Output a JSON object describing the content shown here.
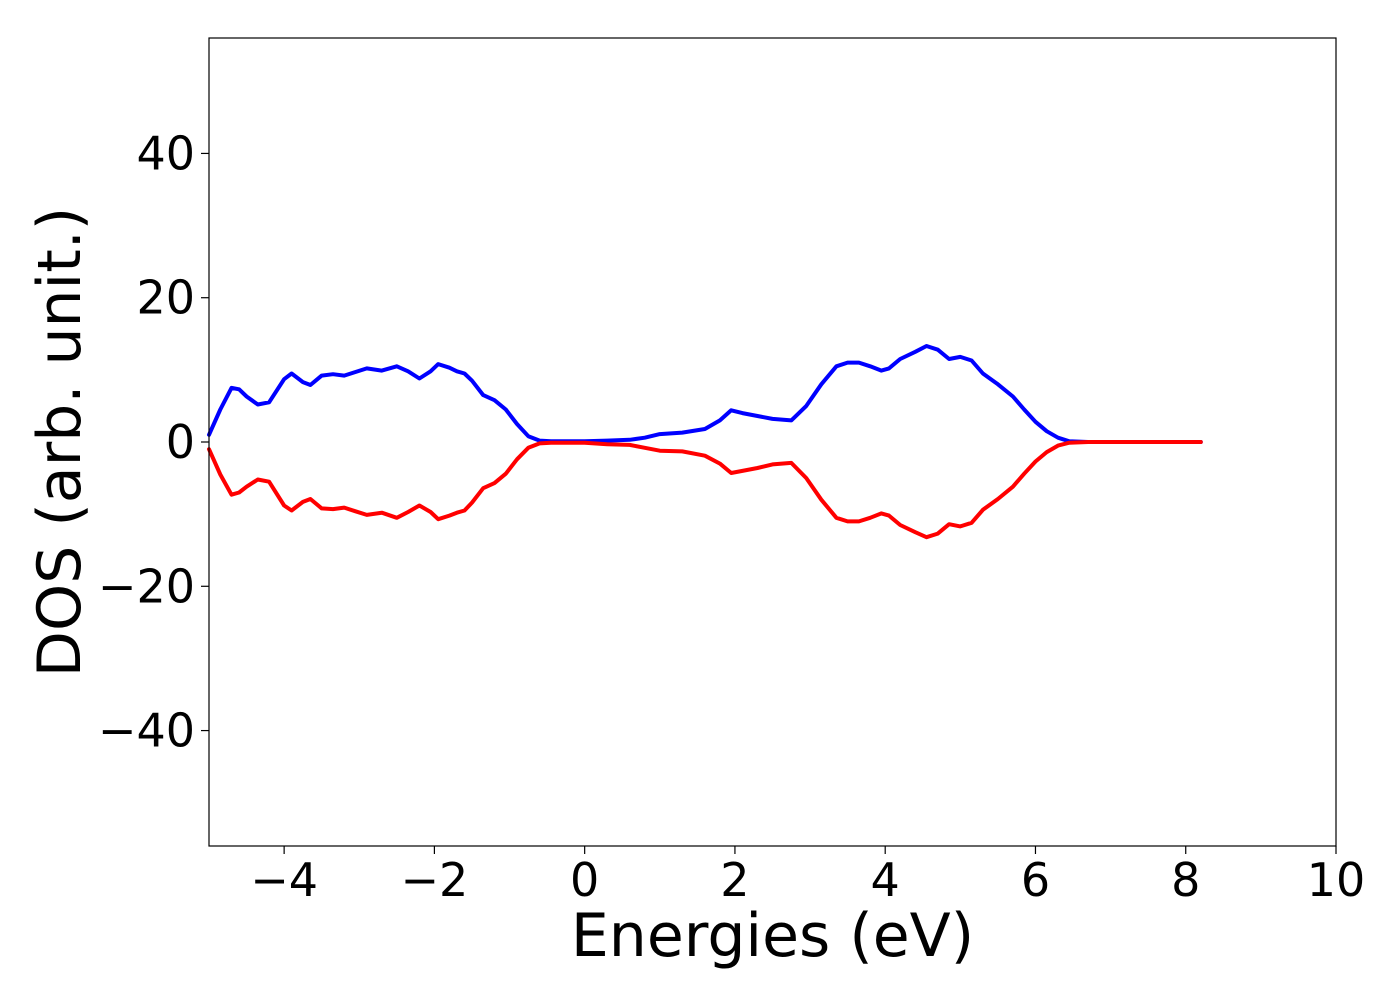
{
  "chart_data": {
    "type": "line",
    "title": "",
    "xlabel": "Energies (eV)",
    "ylabel": "DOS (arb. unit.)",
    "xlim": [
      -5,
      10
    ],
    "ylim": [
      -56,
      56
    ],
    "xticks": [
      -4,
      -2,
      0,
      2,
      4,
      6,
      8,
      10
    ],
    "yticks": [
      -40,
      -20,
      0,
      20,
      40
    ],
    "xtick_labels": [
      "−4",
      "−2",
      "0",
      "2",
      "4",
      "6",
      "8",
      "10"
    ],
    "ytick_labels": [
      "−40",
      "−20",
      "0",
      "20",
      "40"
    ],
    "grid": false,
    "legend": "none",
    "series": [
      {
        "color": "#0000ff",
        "x": [
          -5.0,
          -4.85,
          -4.7,
          -4.6,
          -4.5,
          -4.35,
          -4.2,
          -4.0,
          -3.9,
          -3.75,
          -3.65,
          -3.5,
          -3.35,
          -3.2,
          -3.05,
          -2.9,
          -2.7,
          -2.5,
          -2.35,
          -2.2,
          -2.05,
          -1.95,
          -1.8,
          -1.7,
          -1.6,
          -1.5,
          -1.35,
          -1.2,
          -1.05,
          -0.9,
          -0.75,
          -0.6,
          -0.45,
          -0.3,
          -0.15,
          0.0,
          0.3,
          0.6,
          0.8,
          1.0,
          1.3,
          1.6,
          1.8,
          1.95,
          2.1,
          2.3,
          2.5,
          2.75,
          2.95,
          3.15,
          3.35,
          3.5,
          3.65,
          3.8,
          3.95,
          4.05,
          4.2,
          4.4,
          4.55,
          4.7,
          4.85,
          5.0,
          5.15,
          5.3,
          5.5,
          5.7,
          5.85,
          6.0,
          6.15,
          6.3,
          6.45,
          6.7,
          7.0,
          7.5,
          8.2
        ],
        "y": [
          1.0,
          4.5,
          7.5,
          7.3,
          6.3,
          5.2,
          5.5,
          8.7,
          9.5,
          8.3,
          7.9,
          9.2,
          9.4,
          9.2,
          9.7,
          10.2,
          9.9,
          10.5,
          9.8,
          8.8,
          9.8,
          10.8,
          10.3,
          9.8,
          9.5,
          8.5,
          6.5,
          5.8,
          4.5,
          2.5,
          0.8,
          0.2,
          0.1,
          0.1,
          0.1,
          0.1,
          0.2,
          0.3,
          0.6,
          1.1,
          1.3,
          1.8,
          3.0,
          4.4,
          4.0,
          3.6,
          3.2,
          3.0,
          5.0,
          8.0,
          10.5,
          11.0,
          11.0,
          10.5,
          9.9,
          10.2,
          11.5,
          12.5,
          13.3,
          12.8,
          11.5,
          11.8,
          11.3,
          9.5,
          8.0,
          6.3,
          4.5,
          2.8,
          1.5,
          0.6,
          0.1,
          0.0,
          0.0,
          0.0,
          0.0
        ]
      },
      {
        "color": "#ff0000",
        "x": [
          -5.0,
          -4.85,
          -4.7,
          -4.6,
          -4.5,
          -4.35,
          -4.2,
          -4.0,
          -3.9,
          -3.75,
          -3.65,
          -3.5,
          -3.35,
          -3.2,
          -3.05,
          -2.9,
          -2.7,
          -2.5,
          -2.35,
          -2.2,
          -2.05,
          -1.95,
          -1.8,
          -1.7,
          -1.6,
          -1.5,
          -1.35,
          -1.2,
          -1.05,
          -0.9,
          -0.75,
          -0.6,
          -0.45,
          -0.3,
          -0.15,
          0.0,
          0.3,
          0.6,
          0.8,
          1.0,
          1.3,
          1.6,
          1.8,
          1.95,
          2.1,
          2.3,
          2.5,
          2.75,
          2.95,
          3.15,
          3.35,
          3.5,
          3.65,
          3.8,
          3.95,
          4.05,
          4.2,
          4.4,
          4.55,
          4.7,
          4.85,
          5.0,
          5.15,
          5.3,
          5.5,
          5.7,
          5.85,
          6.0,
          6.15,
          6.3,
          6.45,
          6.7,
          7.0,
          7.5,
          8.2
        ],
        "y": [
          -1.0,
          -4.5,
          -7.3,
          -7.0,
          -6.2,
          -5.2,
          -5.5,
          -8.8,
          -9.5,
          -8.3,
          -7.9,
          -9.2,
          -9.3,
          -9.1,
          -9.6,
          -10.1,
          -9.8,
          -10.5,
          -9.7,
          -8.8,
          -9.7,
          -10.7,
          -10.2,
          -9.8,
          -9.5,
          -8.4,
          -6.4,
          -5.7,
          -4.4,
          -2.4,
          -0.8,
          -0.2,
          -0.1,
          -0.1,
          -0.1,
          -0.1,
          -0.3,
          -0.4,
          -0.8,
          -1.2,
          -1.3,
          -1.9,
          -3.0,
          -4.3,
          -4.0,
          -3.6,
          -3.1,
          -2.9,
          -5.0,
          -8.0,
          -10.5,
          -11.0,
          -11.0,
          -10.5,
          -9.9,
          -10.2,
          -11.5,
          -12.5,
          -13.2,
          -12.7,
          -11.4,
          -11.7,
          -11.2,
          -9.4,
          -7.9,
          -6.2,
          -4.4,
          -2.7,
          -1.4,
          -0.5,
          -0.1,
          0.0,
          0.0,
          0.0,
          0.0
        ]
      }
    ]
  }
}
